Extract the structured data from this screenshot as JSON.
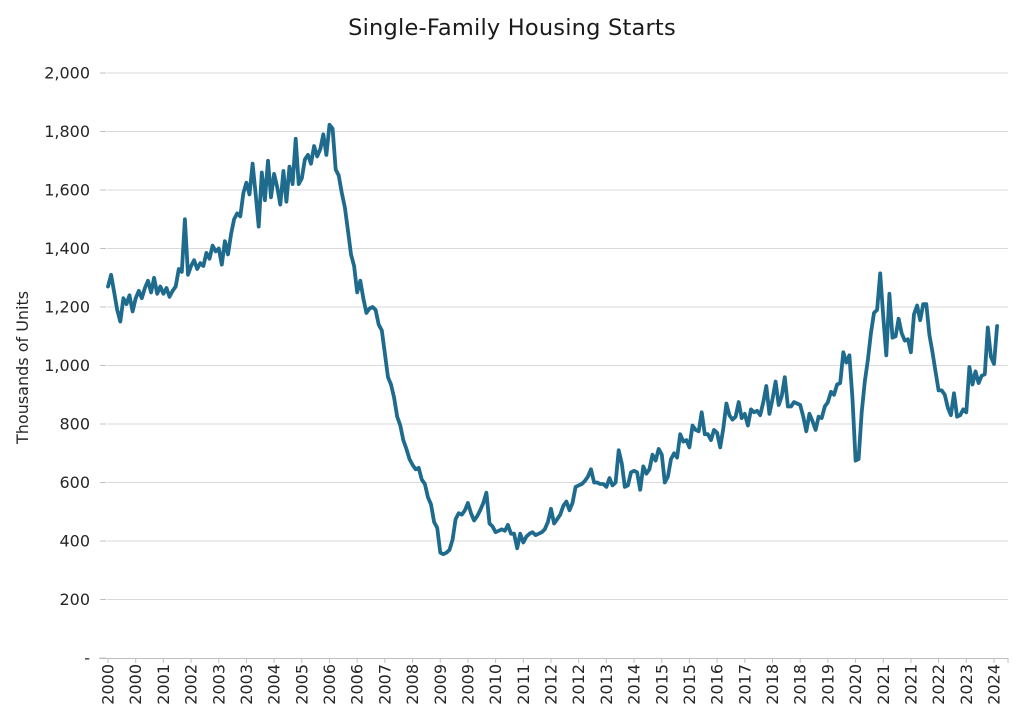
{
  "chart_data": {
    "type": "line",
    "title": "Single-Family Housing Starts",
    "ylabel": "Thousands of Units",
    "x_start": "2000-01",
    "frequency": "monthly",
    "ylim": [
      0,
      2000
    ],
    "grid": "horizontal",
    "legend": "none",
    "line_color": "#1F6B8E",
    "grid_color": "#D9D9D9",
    "axis_color": "#BFBFBF",
    "text_color": "#262626",
    "background": "#FFFFFF",
    "y_ticks": [
      {
        "value": 0,
        "label": "-"
      },
      {
        "value": 200,
        "label": "200"
      },
      {
        "value": 400,
        "label": "400"
      },
      {
        "value": 600,
        "label": "600"
      },
      {
        "value": 800,
        "label": "800"
      },
      {
        "value": 1000,
        "label": "1,000"
      },
      {
        "value": 1200,
        "label": "1,200"
      },
      {
        "value": 1400,
        "label": "1,400"
      },
      {
        "value": 1600,
        "label": "1,600"
      },
      {
        "value": 1800,
        "label": "1,800"
      },
      {
        "value": 2000,
        "label": "2,000"
      }
    ],
    "x_ticks": {
      "interval_months": 9,
      "labels": [
        "2000",
        "2000",
        "2001",
        "2002",
        "2003",
        "2003",
        "2004",
        "2005",
        "2006",
        "2006",
        "2007",
        "2008",
        "2009",
        "2009",
        "2010",
        "2011",
        "2012",
        "2012",
        "2013",
        "2014",
        "2015",
        "2015",
        "2016",
        "2017",
        "2018",
        "2018",
        "2019",
        "2020",
        "2021",
        "2021",
        "2022",
        "2023",
        "2024"
      ]
    },
    "series": [
      {
        "name": "Single-Family Housing Starts",
        "values": [
          1270,
          1310,
          1250,
          1190,
          1150,
          1230,
          1210,
          1240,
          1185,
          1230,
          1255,
          1230,
          1265,
          1290,
          1250,
          1300,
          1245,
          1270,
          1245,
          1265,
          1235,
          1255,
          1270,
          1330,
          1320,
          1500,
          1310,
          1340,
          1360,
          1330,
          1350,
          1340,
          1385,
          1365,
          1410,
          1390,
          1400,
          1345,
          1425,
          1380,
          1450,
          1500,
          1520,
          1510,
          1590,
          1625,
          1585,
          1690,
          1585,
          1475,
          1660,
          1565,
          1700,
          1575,
          1655,
          1610,
          1550,
          1665,
          1560,
          1680,
          1620,
          1775,
          1620,
          1640,
          1705,
          1720,
          1690,
          1750,
          1715,
          1740,
          1790,
          1720,
          1823,
          1810,
          1670,
          1650,
          1590,
          1540,
          1460,
          1380,
          1340,
          1250,
          1290,
          1230,
          1180,
          1195,
          1200,
          1190,
          1140,
          1120,
          1040,
          960,
          935,
          890,
          825,
          795,
          745,
          715,
          680,
          660,
          645,
          650,
          610,
          595,
          550,
          525,
          465,
          445,
          360,
          355,
          360,
          370,
          405,
          475,
          495,
          490,
          505,
          530,
          495,
          470,
          485,
          505,
          530,
          565,
          460,
          450,
          430,
          435,
          440,
          435,
          455,
          425,
          425,
          375,
          425,
          395,
          415,
          425,
          430,
          420,
          425,
          430,
          440,
          465,
          510,
          460,
          475,
          490,
          520,
          535,
          505,
          530,
          585,
          590,
          595,
          605,
          620,
          645,
          600,
          600,
          595,
          595,
          585,
          615,
          590,
          600,
          710,
          665,
          585,
          590,
          635,
          640,
          635,
          575,
          655,
          630,
          645,
          695,
          675,
          715,
          695,
          600,
          620,
          680,
          700,
          685,
          765,
          740,
          745,
          720,
          795,
          780,
          775,
          840,
          765,
          765,
          745,
          780,
          770,
          720,
          785,
          870,
          830,
          815,
          825,
          875,
          820,
          835,
          795,
          850,
          840,
          845,
          830,
          875,
          930,
          835,
          885,
          945,
          865,
          895,
          960,
          860,
          860,
          875,
          870,
          865,
          825,
          775,
          835,
          810,
          780,
          825,
          820,
          860,
          875,
          910,
          900,
          935,
          940,
          1045,
          1010,
          1035,
          885,
          675,
          680,
          840,
          945,
          1020,
          1110,
          1180,
          1190,
          1315,
          1165,
          1035,
          1245,
          1095,
          1100,
          1160,
          1110,
          1085,
          1090,
          1045,
          1175,
          1205,
          1155,
          1210,
          1210,
          1105,
          1045,
          980,
          915,
          915,
          900,
          855,
          830,
          905,
          825,
          830,
          850,
          840,
          995,
          935,
          980,
          940,
          965,
          970,
          1130,
          1030,
          1005,
          1135
        ]
      }
    ]
  }
}
